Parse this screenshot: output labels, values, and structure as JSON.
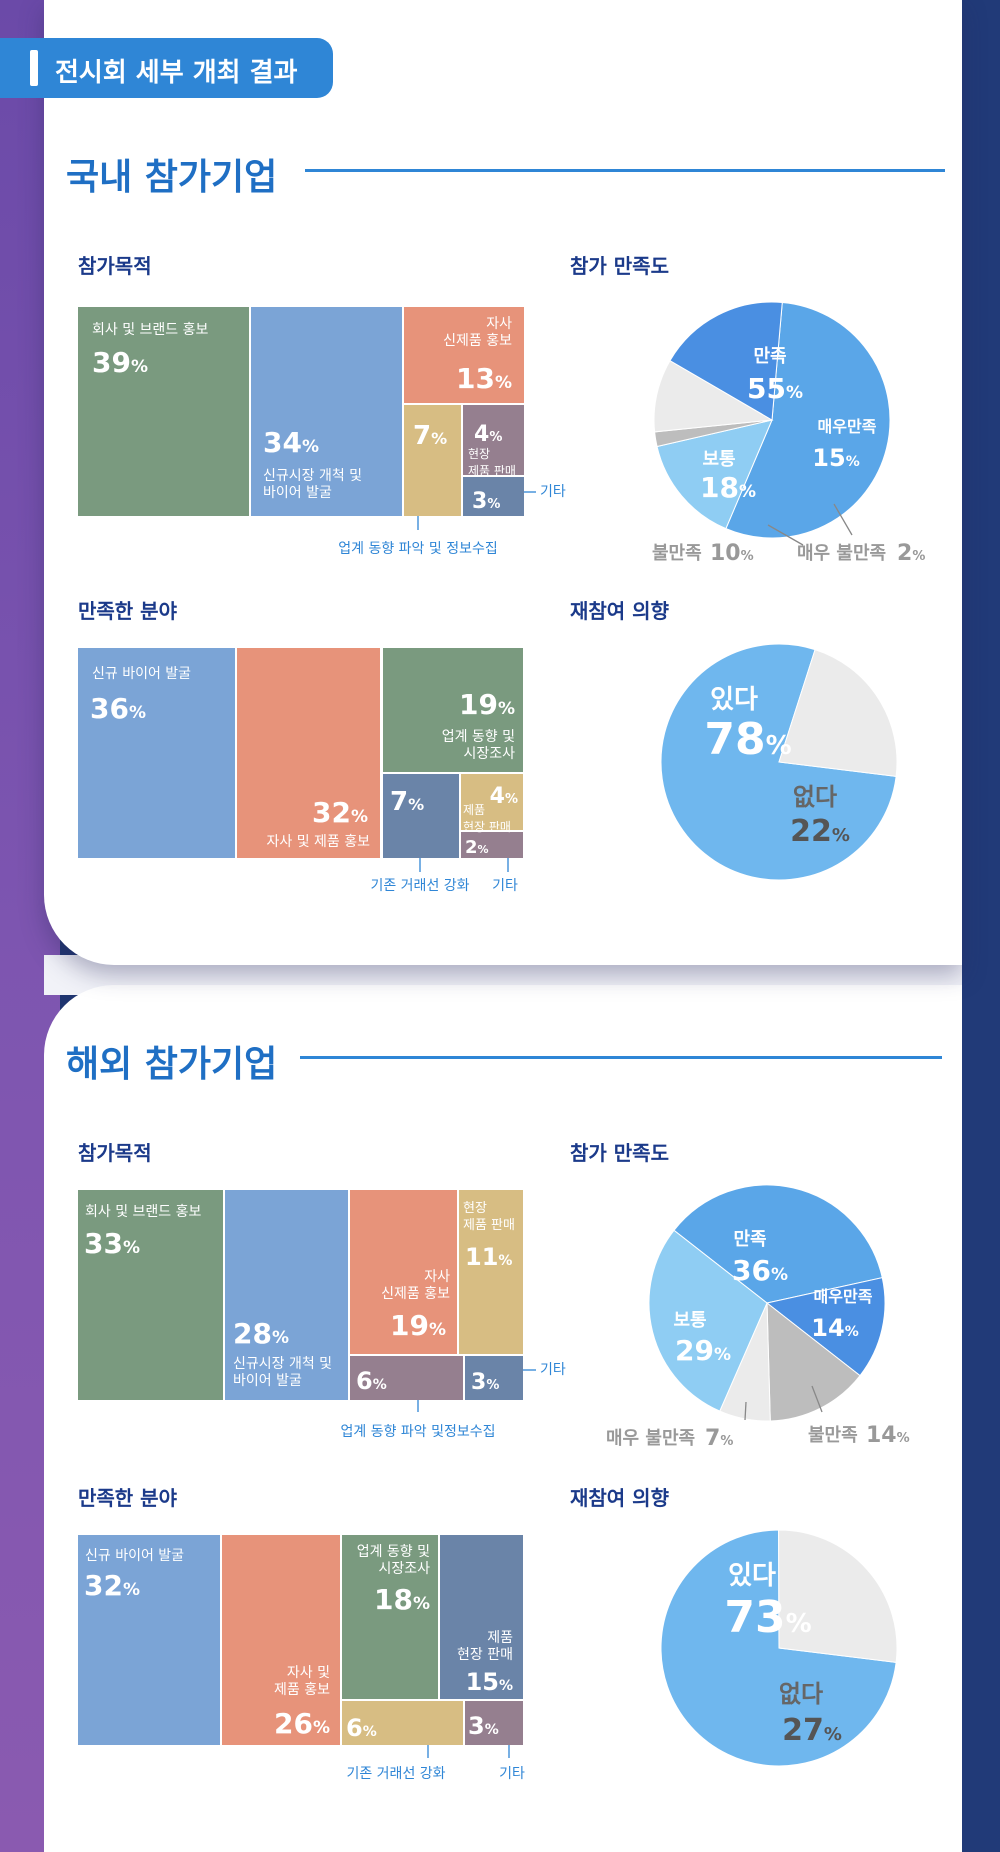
{
  "badge": "전시회 세부 개최 결과",
  "colors": {
    "green": "#7a9a7f",
    "blue": "#7ba4d6",
    "salmon": "#e7937a",
    "tan": "#d7bd83",
    "mauve": "#957f8f",
    "slate": "#6a84a8",
    "pie_main": "#5aa6e8",
    "pie_light": "#8fcdf3",
    "pie_mid": "#4a8fe2",
    "pie_grey": "#e8e8e8",
    "pie_grey2": "#bdbdbd",
    "label": "#2f86d6"
  },
  "domestic": {
    "title": "국내 참가기업",
    "purpose_title": "참가목적",
    "satisfaction_title": "참가 만족도",
    "field_title": "만족한 분야",
    "revisit_title": "재참여 의향",
    "purpose_callouts": [
      "기타",
      "업계 동향 파악 및 정보수집"
    ],
    "field_callouts": [
      "기존 거래선 강화",
      "기타"
    ]
  },
  "overseas": {
    "title": "해외 참가기업",
    "purpose_title": "참가목적",
    "satisfaction_title": "참가 만족도",
    "field_title": "만족한 분야",
    "revisit_title": "재참여 의향",
    "purpose_callouts": [
      "기타",
      "업계 동향 파악 및정보수집"
    ],
    "field_callouts": [
      "기존 거래선 강화",
      "기타"
    ]
  },
  "chart_data": [
    {
      "id": "dom_purpose",
      "type": "treemap",
      "title": "참가목적",
      "items": [
        {
          "label": "회사 및 브랜드 홍보",
          "value": 39,
          "color": "green"
        },
        {
          "label": "신규시장 개척 및 바이어 발굴",
          "value": 34,
          "color": "blue"
        },
        {
          "label": "자사 신제품 홍보",
          "value": 13,
          "color": "salmon"
        },
        {
          "label": "업계 동향 파악 및 정보수집",
          "value": 7,
          "color": "tan"
        },
        {
          "label": "현장 제품 판매",
          "value": 4,
          "color": "mauve"
        },
        {
          "label": "기타",
          "value": 3,
          "color": "slate"
        }
      ]
    },
    {
      "id": "dom_sat",
      "type": "pie",
      "title": "참가 만족도",
      "slices": [
        {
          "label": "만족",
          "value": 55
        },
        {
          "label": "매우만족",
          "value": 15
        },
        {
          "label": "매우 불만족",
          "value": 2
        },
        {
          "label": "불만족",
          "value": 10
        },
        {
          "label": "보통",
          "value": 18
        }
      ]
    },
    {
      "id": "dom_field",
      "type": "treemap",
      "title": "만족한 분야",
      "items": [
        {
          "label": "신규 바이어 발굴",
          "value": 36,
          "color": "blue"
        },
        {
          "label": "자사 및 제품 홍보",
          "value": 32,
          "color": "salmon"
        },
        {
          "label": "업계 동향 및 시장조사",
          "value": 19,
          "color": "green"
        },
        {
          "label": "기존 거래선 강화",
          "value": 7,
          "color": "slate"
        },
        {
          "label": "제품 현장 판매",
          "value": 4,
          "color": "tan"
        },
        {
          "label": "기타",
          "value": 2,
          "color": "mauve"
        }
      ]
    },
    {
      "id": "dom_revisit",
      "type": "pie",
      "title": "재참여 의향",
      "slices": [
        {
          "label": "있다",
          "value": 78
        },
        {
          "label": "없다",
          "value": 22
        }
      ]
    },
    {
      "id": "ovs_purpose",
      "type": "treemap",
      "title": "참가목적",
      "items": [
        {
          "label": "회사 및 브랜드 홍보",
          "value": 33,
          "color": "green"
        },
        {
          "label": "신규시장 개척 및 바이어 발굴",
          "value": 28,
          "color": "blue"
        },
        {
          "label": "자사 신제품 홍보",
          "value": 19,
          "color": "salmon"
        },
        {
          "label": "현장 제품 판매",
          "value": 11,
          "color": "tan"
        },
        {
          "label": "업계 동향 파악 및정보수집",
          "value": 6,
          "color": "mauve"
        },
        {
          "label": "기타",
          "value": 3,
          "color": "slate"
        }
      ]
    },
    {
      "id": "ovs_sat",
      "type": "pie",
      "title": "참가 만족도",
      "slices": [
        {
          "label": "만족",
          "value": 36
        },
        {
          "label": "매우만족",
          "value": 14
        },
        {
          "label": "불만족",
          "value": 14
        },
        {
          "label": "매우 불만족",
          "value": 7
        },
        {
          "label": "보통",
          "value": 29
        }
      ]
    },
    {
      "id": "ovs_field",
      "type": "treemap",
      "title": "만족한 분야",
      "items": [
        {
          "label": "신규 바이어 발굴",
          "value": 32,
          "color": "blue"
        },
        {
          "label": "자사 및 제품 홍보",
          "value": 26,
          "color": "salmon"
        },
        {
          "label": "업계 동향 및 시장조사",
          "value": 18,
          "color": "green"
        },
        {
          "label": "제품 현장 판매",
          "value": 15,
          "color": "slate"
        },
        {
          "label": "기존 거래선 강화",
          "value": 6,
          "color": "tan"
        },
        {
          "label": "기타",
          "value": 3,
          "color": "mauve"
        }
      ]
    },
    {
      "id": "ovs_revisit",
      "type": "pie",
      "title": "재참여 의향",
      "slices": [
        {
          "label": "있다",
          "value": 73
        },
        {
          "label": "없다",
          "value": 27
        }
      ]
    }
  ]
}
